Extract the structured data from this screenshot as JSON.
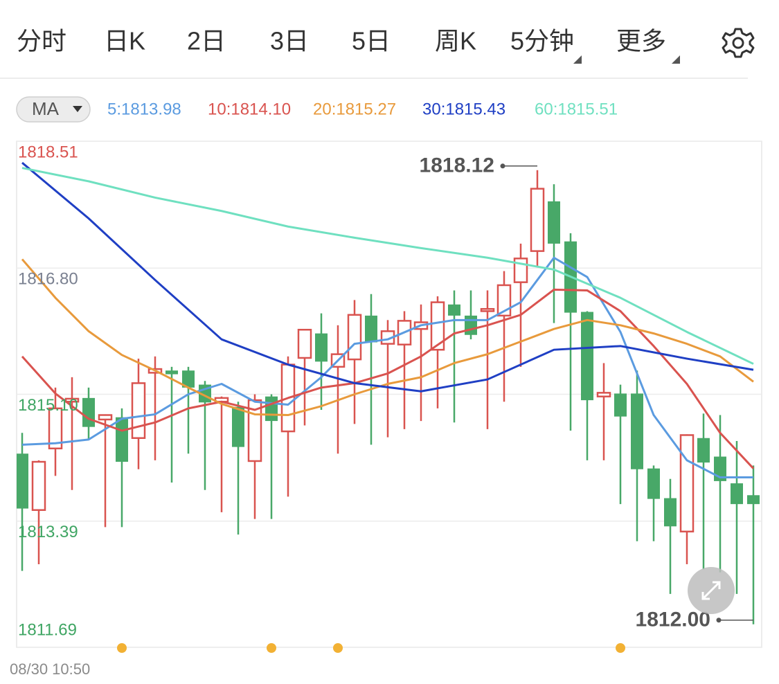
{
  "tabs": [
    "分时",
    "日K",
    "2日",
    "3日",
    "5日",
    "周K",
    "5分钟",
    "更多"
  ],
  "active_tab": 6,
  "indicator": "MA",
  "chart_data": {
    "type": "candlestick",
    "start_time": "08/30 10:50",
    "up_color": "#d9534f",
    "down_color": "#48a868",
    "open": [
      1814.3,
      1813.54,
      1814.37,
      1815.0,
      1815.05,
      1814.76,
      1814.79,
      1814.51,
      1815.39,
      1815.42,
      1815.42,
      1815.23,
      1815.0,
      1814.93,
      1814.2,
      1815.07,
      1814.6,
      1815.59,
      1815.92,
      1815.47,
      1815.57,
      1816.16,
      1815.78,
      1815.77,
      1815.98,
      1815.7,
      1816.31,
      1816.16,
      1816.22,
      1816.16,
      1816.61,
      1817.03,
      1817.7,
      1817.16,
      1816.21,
      1815.07,
      1815.11,
      1815.11,
      1814.1,
      1813.7,
      1813.25,
      1814.51,
      1814.26,
      1813.9,
      1813.74
    ],
    "high": [
      1814.58,
      1814.21,
      1815.19,
      1815.33,
      1815.19,
      1814.83,
      1814.91,
      1815.58,
      1815.61,
      1815.47,
      1815.47,
      1815.28,
      1815.07,
      1815.0,
      1815.1,
      1815.1,
      1815.61,
      1815.98,
      1816.19,
      1816.03,
      1816.37,
      1816.45,
      1816.1,
      1816.22,
      1816.31,
      1816.42,
      1816.5,
      1816.5,
      1816.5,
      1816.76,
      1817.13,
      1818.12,
      1817.93,
      1817.27,
      1816.22,
      1815.52,
      1815.23,
      1815.42,
      1814.14,
      1813.96,
      1814.56,
      1814.84,
      1814.82,
      1814.47,
      1814.14
    ],
    "low": [
      1812.72,
      1812.81,
      1814.0,
      1813.81,
      1814.49,
      1813.31,
      1813.31,
      1814.09,
      1814.21,
      1813.91,
      1814.3,
      1813.81,
      1813.51,
      1813.21,
      1813.42,
      1813.42,
      1813.72,
      1814.68,
      1814.89,
      1814.3,
      1814.7,
      1814.42,
      1814.52,
      1814.63,
      1814.74,
      1814.91,
      1814.72,
      1815.84,
      1814.63,
      1815.0,
      1815.47,
      1816.82,
      1816.06,
      1814.61,
      1814.21,
      1814.21,
      1813.62,
      1813.12,
      1813.12,
      1812.41,
      1812.81,
      1812.74,
      1812.7,
      1812.41,
      1812.0
    ],
    "close": [
      1813.56,
      1814.19,
      1814.91,
      1815.04,
      1814.66,
      1814.82,
      1814.19,
      1815.25,
      1815.44,
      1815.37,
      1815.19,
      1814.99,
      1815.05,
      1814.39,
      1815.02,
      1814.74,
      1815.5,
      1815.97,
      1815.54,
      1815.64,
      1816.17,
      1815.8,
      1815.95,
      1816.09,
      1816.07,
      1816.34,
      1816.16,
      1815.9,
      1816.25,
      1816.57,
      1816.93,
      1817.87,
      1817.13,
      1816.2,
      1815.02,
      1815.12,
      1814.8,
      1814.09,
      1813.69,
      1813.32,
      1814.55,
      1814.18,
      1813.93,
      1813.62,
      1813.62
    ],
    "ma_series": [
      {
        "name": "5:1813.98",
        "color": "#5b9be0",
        "x": [
          0,
          2,
          4,
          6,
          8,
          10,
          12,
          14,
          16,
          18,
          20,
          22,
          24,
          26,
          28,
          30,
          32,
          34,
          36,
          38,
          40,
          42,
          44
        ],
        "values": [
          1814.42,
          1814.44,
          1814.49,
          1814.77,
          1814.83,
          1815.1,
          1815.24,
          1815.0,
          1814.96,
          1815.33,
          1815.78,
          1815.84,
          1816.03,
          1816.1,
          1816.1,
          1816.34,
          1816.94,
          1816.68,
          1815.94,
          1814.82,
          1814.21,
          1813.98,
          1813.98
        ]
      },
      {
        "name": "10:1814.10",
        "color": "#d9534f",
        "x": [
          0,
          2,
          4,
          6,
          8,
          10,
          12,
          14,
          16,
          18,
          20,
          22,
          24,
          26,
          28,
          30,
          32,
          34,
          36,
          38,
          40,
          42,
          44
        ],
        "values": [
          1815.61,
          1815.11,
          1814.77,
          1814.61,
          1814.72,
          1814.91,
          1815.0,
          1814.89,
          1815.05,
          1815.19,
          1815.25,
          1815.38,
          1815.61,
          1815.92,
          1816.03,
          1816.17,
          1816.51,
          1816.5,
          1816.22,
          1815.75,
          1815.24,
          1814.58,
          1814.1
        ]
      },
      {
        "name": "20:1815.27",
        "color": "#e89a3c",
        "x": [
          0,
          2,
          4,
          6,
          8,
          10,
          12,
          14,
          16,
          18,
          20,
          22,
          24,
          26,
          28,
          30,
          32,
          34,
          36,
          38,
          40,
          42,
          44
        ],
        "values": [
          1816.92,
          1816.4,
          1815.95,
          1815.63,
          1815.42,
          1815.19,
          1814.97,
          1814.83,
          1814.82,
          1814.94,
          1815.1,
          1815.24,
          1815.33,
          1815.52,
          1815.64,
          1815.81,
          1815.98,
          1816.1,
          1816.03,
          1815.92,
          1815.78,
          1815.61,
          1815.27
        ]
      },
      {
        "name": "30:1815.43",
        "color": "#1f3fc4",
        "x": [
          0,
          4,
          8,
          12,
          16,
          20,
          24,
          28,
          32,
          36,
          40,
          44
        ],
        "values": [
          1818.22,
          1817.47,
          1816.64,
          1815.84,
          1815.5,
          1815.25,
          1815.14,
          1815.3,
          1815.7,
          1815.75,
          1815.58,
          1815.43
        ]
      },
      {
        "name": "60:1815.51",
        "color": "#6fe0c0",
        "x": [
          0,
          4,
          8,
          12,
          16,
          20,
          24,
          28,
          32,
          36,
          40,
          44
        ],
        "values": [
          1818.15,
          1817.97,
          1817.75,
          1817.57,
          1817.36,
          1817.21,
          1817.07,
          1816.94,
          1816.78,
          1816.4,
          1815.94,
          1815.51
        ]
      }
    ],
    "ylim": [
      1811.69,
      1818.51
    ],
    "yticks": [
      1818.51,
      {
        "value": 1816.8,
        "label": "1816.80"
      },
      {
        "value": 1815.1,
        "label": "1815.10"
      },
      1813.39,
      1811.69
    ],
    "ytick_colors": [
      "#d9534f",
      "#7a8090",
      "#3fa563",
      "#3fa563",
      "#3fa563"
    ],
    "grid": true,
    "annotations": [
      {
        "value": 1818.12,
        "label": "1818.12"
      },
      {
        "value": 1812.0,
        "label": "1812.00"
      }
    ]
  }
}
